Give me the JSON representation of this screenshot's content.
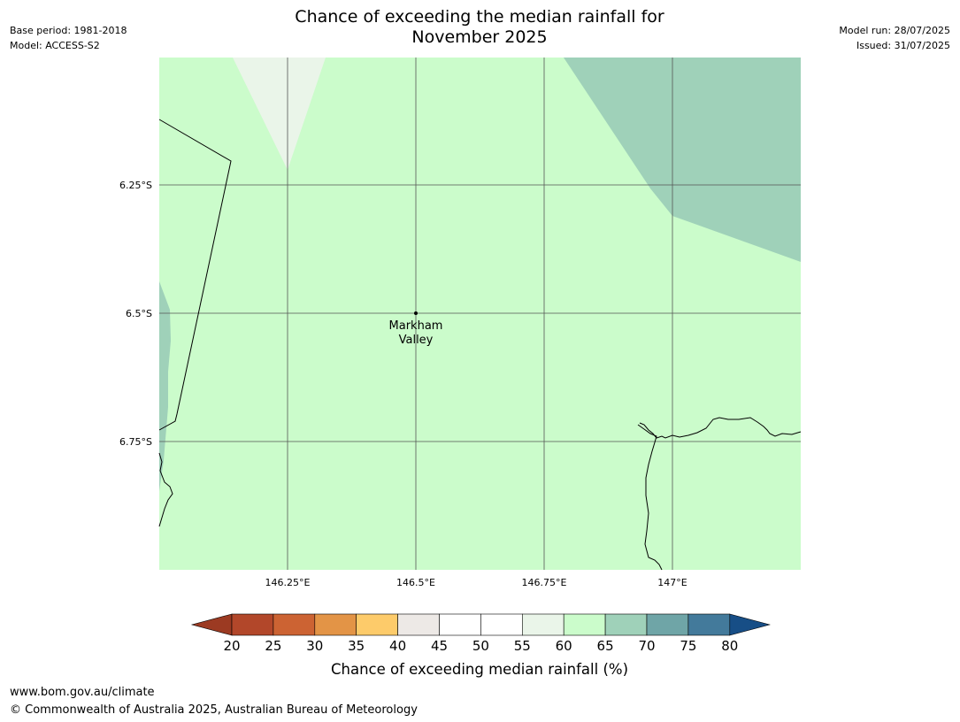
{
  "header": {
    "title_line1": "Chance of exceeding the median rainfall for",
    "title_line2": "November 2025",
    "base_period": "Base period: 1981-2018",
    "model": "Model: ACCESS-S2",
    "model_run": "Model run: 28/07/2025",
    "issued": "Issued: 31/07/2025"
  },
  "map": {
    "lat_ticks": [
      "6.25°S",
      "6.5°S",
      "6.75°S"
    ],
    "lon_ticks": [
      "146.25°E",
      "146.5°E",
      "146.75°E",
      "147°E"
    ],
    "place": {
      "name_line1": "Markham",
      "name_line2": "Valley"
    }
  },
  "legend": {
    "ticks": [
      "20",
      "25",
      "30",
      "35",
      "40",
      "45",
      "50",
      "55",
      "60",
      "65",
      "70",
      "75",
      "80"
    ],
    "colors": [
      "#9c3a22",
      "#b2472a",
      "#cc6333",
      "#e39446",
      "#fdcb6a",
      "#ede9e6",
      "#ffffff",
      "#ffffff",
      "#eaf5e9",
      "#cbfccb",
      "#9fd1b9",
      "#6fa5a7",
      "#437a9b",
      "#174e86"
    ],
    "label": "Chance of exceeding median rainfall (%)"
  },
  "footer": {
    "url": "www.bom.gov.au/climate",
    "copyright": "© Commonwealth of Australia 2025, Australian Bureau of Meteorology"
  }
}
